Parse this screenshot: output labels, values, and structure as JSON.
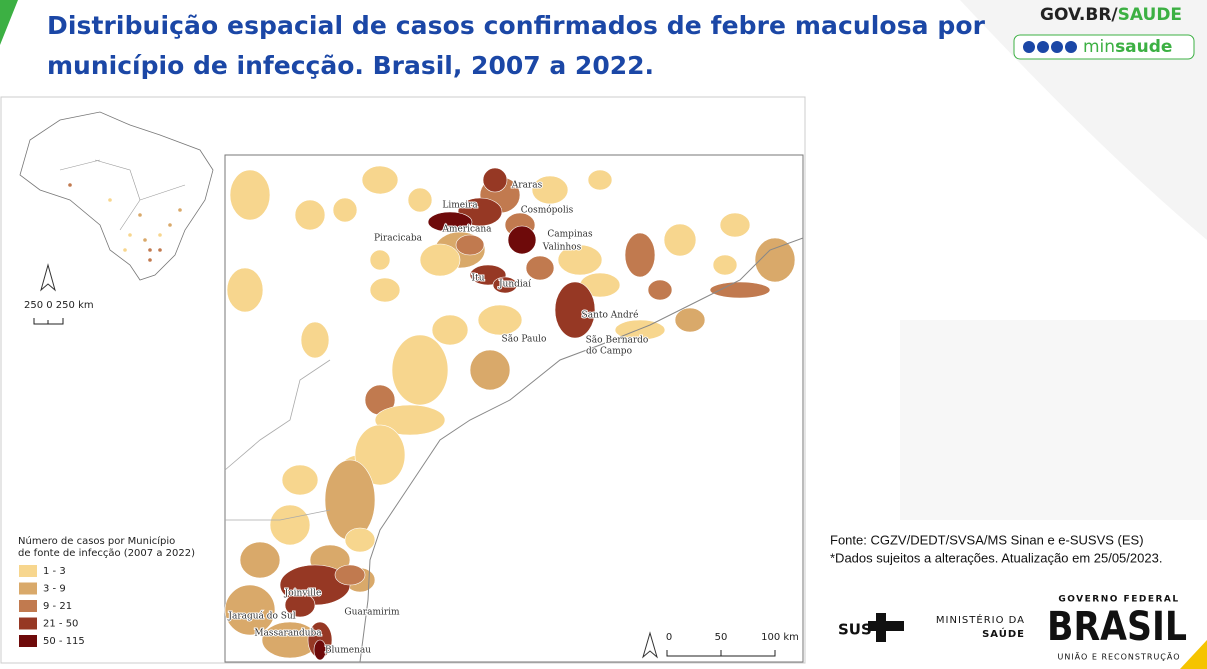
{
  "header": {
    "title_lines": [
      "Distribuição espacial de casos confirmados de febre maculosa por",
      "município de infecção. Brasil, 2007 a 2022."
    ],
    "gov": "GOV.BR/",
    "saude": "SAUDE",
    "min": "min",
    "min_bold": "saude"
  },
  "map": {
    "inset_scale": "250 0 250 km",
    "scale_ticks": [
      "0",
      "50",
      "100 km"
    ],
    "places": [
      "Araras",
      "Limeira",
      "Cosmópolis",
      "Piracicaba",
      "Americana",
      "Campinas",
      "Valinhos",
      "Itu",
      "Jundiaí",
      "Santo André",
      "São Paulo",
      "São Bernardo",
      "do Campo",
      "Joinville",
      "Guaramirim",
      "Jaraguá do Sul",
      "Massaranduba",
      "Blumenau"
    ],
    "legend": {
      "title_lines": [
        "Número de casos por Município",
        "de fonte de infecção (2007 a 2022)"
      ],
      "classes": [
        {
          "label": "1 - 3",
          "color": "#f7d68e"
        },
        {
          "label": "3 - 9",
          "color": "#d9a96a"
        },
        {
          "label": "9 - 21",
          "color": "#c17a4f"
        },
        {
          "label": "21 - 50",
          "color": "#963824"
        },
        {
          "label": "50 - 115",
          "color": "#6e0a0a"
        }
      ]
    }
  },
  "source": {
    "lines": [
      "Fonte: CGZV/DEDT/SVSA/MS Sinan e e-SUSVS (ES)",
      "*Dados sujeitos a alterações. Atualização em 25/05/2023."
    ]
  },
  "footer": {
    "sus": "SUS",
    "ministry": [
      "MINISTÉRIO DA",
      "SAÚDE"
    ],
    "gov_federal": "GOVERNO FEDERAL",
    "brasil": "BRASIL",
    "union": "UNIÃO E RECONSTRUÇÃO"
  }
}
